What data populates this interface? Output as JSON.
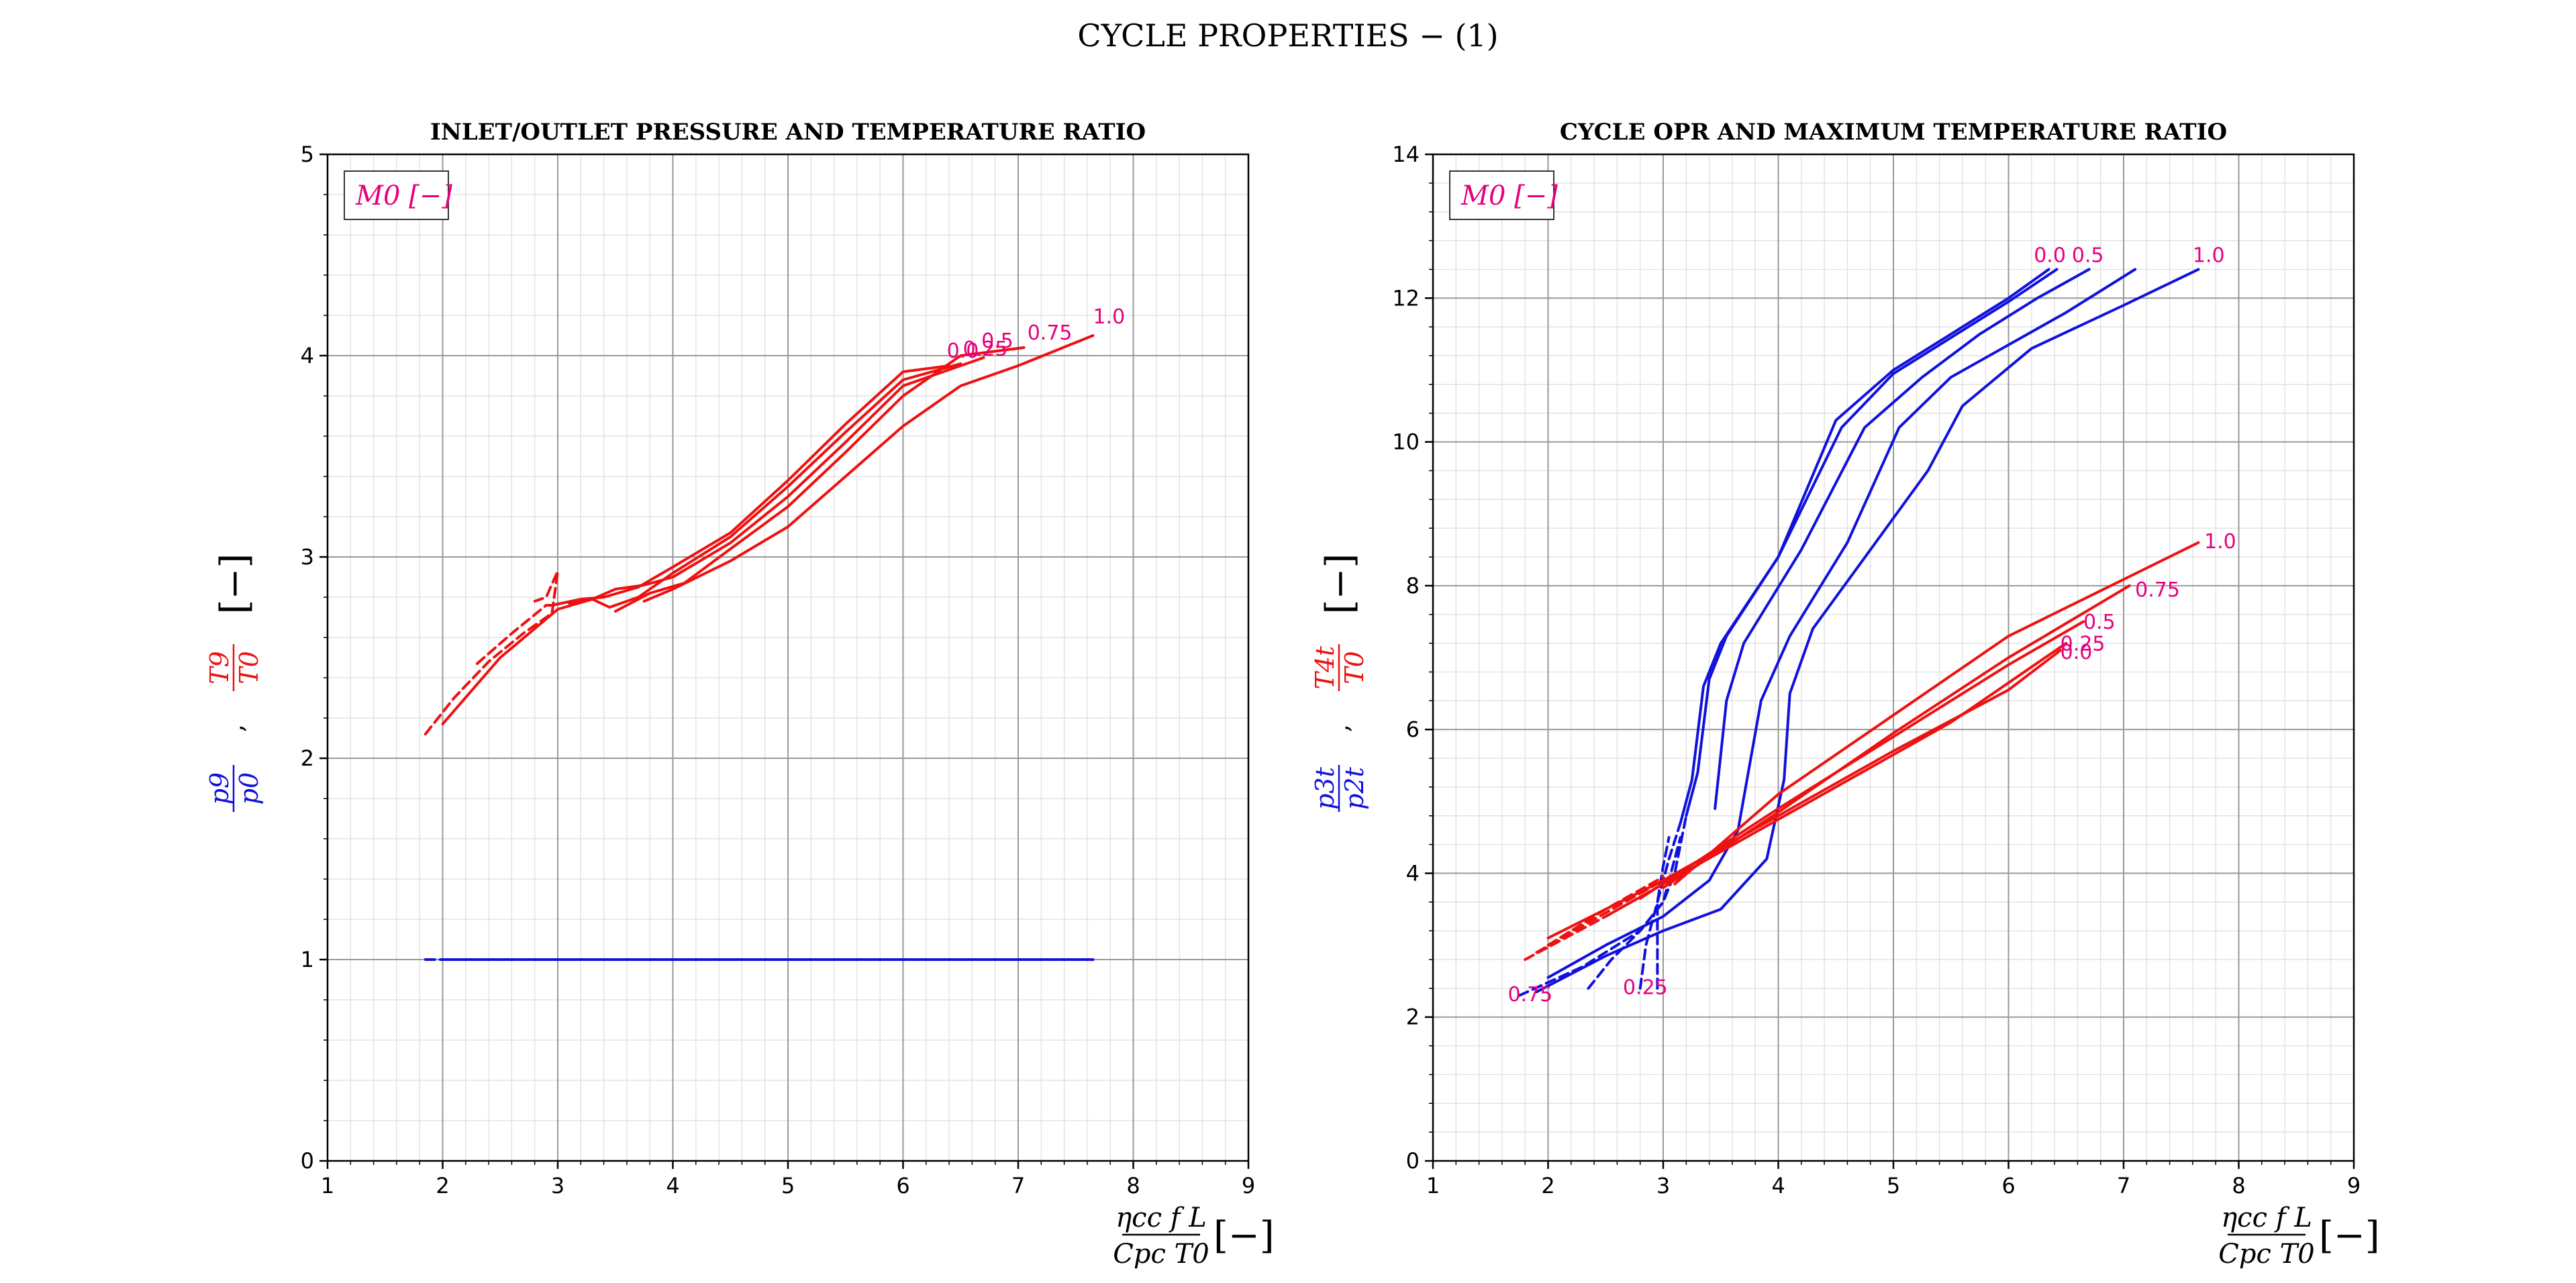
{
  "figure": {
    "title": "CYCLE PROPERTIES − (1)"
  },
  "colors": {
    "red": "#ee1111",
    "blue": "#1111dd",
    "magenta": "#e6007e",
    "grid_major": "#999999",
    "grid_minor": "#dddddd"
  },
  "chart_data": [
    {
      "type": "line",
      "title": "INLET/OUTLET PRESSURE AND TEMPERATURE RATIO",
      "xlabel_num": "ηcc f L",
      "xlabel_den": "Cpc T0",
      "xlabel_unit": "[−]",
      "ylabel_blue_num": "p9",
      "ylabel_blue_den": "p0",
      "ylabel_sep": ",",
      "ylabel_red_num": "T9",
      "ylabel_red_den": "T0",
      "ylabel_unit": "[−]",
      "legend_title": "M0 [−]",
      "legend_placement": "top-left",
      "xlim": [
        1,
        9
      ],
      "ylim": [
        0,
        5
      ],
      "xticks": [
        "1",
        "2",
        "3",
        "4",
        "5",
        "6",
        "7",
        "8",
        "9"
      ],
      "yticks": [
        "0",
        "1",
        "2",
        "3",
        "4",
        "5"
      ],
      "grid": true,
      "minor_grid": true,
      "series": [
        {
          "color": "red",
          "dash": true,
          "points": [
            [
              1.85,
              2.12
            ],
            [
              2.1,
              2.3
            ],
            [
              2.4,
              2.48
            ],
            [
              2.7,
              2.62
            ],
            [
              2.95,
              2.72
            ],
            [
              3.0,
              2.93
            ],
            [
              2.9,
              2.8
            ],
            [
              2.8,
              2.78
            ]
          ]
        },
        {
          "color": "red",
          "dash": false,
          "points": [
            [
              2.95,
              2.76
            ],
            [
              3.2,
              2.79
            ],
            [
              3.4,
              2.8
            ],
            [
              3.7,
              2.85
            ],
            [
              4.0,
              2.95
            ],
            [
              4.5,
              3.12
            ],
            [
              5.0,
              3.38
            ],
            [
              5.5,
              3.66
            ],
            [
              6.0,
              3.92
            ],
            [
              6.4,
              3.95
            ]
          ]
        },
        {
          "color": "red",
          "dash": true,
          "points": [
            [
              2.3,
              2.47
            ],
            [
              2.6,
              2.62
            ],
            [
              2.9,
              2.76
            ],
            [
              3.0,
              2.76
            ]
          ]
        },
        {
          "color": "red",
          "dash": false,
          "points": [
            [
              3.1,
              2.77
            ],
            [
              3.3,
              2.79
            ],
            [
              3.45,
              2.75
            ],
            [
              3.7,
              2.8
            ],
            [
              4.0,
              2.92
            ],
            [
              4.5,
              3.1
            ],
            [
              5.0,
              3.35
            ],
            [
              5.5,
              3.62
            ],
            [
              6.0,
              3.88
            ],
            [
              6.5,
              3.96
            ]
          ]
        },
        {
          "color": "red",
          "dash": false,
          "points": [
            [
              2.0,
              2.17
            ],
            [
              2.5,
              2.5
            ],
            [
              3.0,
              2.74
            ],
            [
              3.3,
              2.79
            ],
            [
              3.5,
              2.84
            ],
            [
              3.75,
              2.86
            ],
            [
              4.0,
              2.9
            ],
            [
              4.5,
              3.07
            ],
            [
              5.0,
              3.3
            ],
            [
              5.5,
              3.57
            ],
            [
              6.0,
              3.85
            ],
            [
              6.7,
              3.99
            ]
          ]
        },
        {
          "color": "red",
          "dash": false,
          "points": [
            [
              3.5,
              2.73
            ],
            [
              3.8,
              2.82
            ],
            [
              4.1,
              2.87
            ],
            [
              4.5,
              3.04
            ],
            [
              5.0,
              3.25
            ],
            [
              5.5,
              3.52
            ],
            [
              6.0,
              3.8
            ],
            [
              6.5,
              4.0
            ],
            [
              7.05,
              4.04
            ]
          ]
        },
        {
          "color": "red",
          "dash": false,
          "points": [
            [
              3.75,
              2.78
            ],
            [
              4.0,
              2.84
            ],
            [
              4.5,
              2.98
            ],
            [
              5.0,
              3.15
            ],
            [
              5.5,
              3.4
            ],
            [
              6.0,
              3.65
            ],
            [
              6.5,
              3.85
            ],
            [
              7.0,
              3.95
            ],
            [
              7.65,
              4.1
            ]
          ]
        },
        {
          "color": "blue",
          "dash": true,
          "points": [
            [
              1.85,
              1.0
            ],
            [
              2.0,
              1.0
            ]
          ]
        },
        {
          "color": "blue",
          "dash": false,
          "points": [
            [
              2.0,
              1.0
            ],
            [
              7.65,
              1.0
            ]
          ]
        }
      ],
      "annotations": [
        {
          "text": "0.0",
          "x": 6.38,
          "y": 3.99
        },
        {
          "text": "0.25",
          "x": 6.52,
          "y": 4.0
        },
        {
          "text": "0.5",
          "x": 6.68,
          "y": 4.04
        },
        {
          "text": "0.75",
          "x": 7.08,
          "y": 4.08
        },
        {
          "text": "1.0",
          "x": 7.65,
          "y": 4.16
        }
      ]
    },
    {
      "type": "line",
      "title": "CYCLE OPR AND MAXIMUM TEMPERATURE RATIO",
      "xlabel_num": "ηcc f L",
      "xlabel_den": "Cpc T0",
      "xlabel_unit": "[−]",
      "ylabel_blue_num": "p3t",
      "ylabel_blue_den": "p2t",
      "ylabel_sep": ",",
      "ylabel_red_num": "T4t",
      "ylabel_red_den": "T0",
      "ylabel_unit": "[−]",
      "legend_title": "M0 [−]",
      "legend_placement": "top-left",
      "xlim": [
        1,
        9
      ],
      "ylim": [
        0,
        14
      ],
      "xticks": [
        "1",
        "2",
        "3",
        "4",
        "5",
        "6",
        "7",
        "8",
        "9"
      ],
      "yticks": [
        "0",
        "2",
        "4",
        "6",
        "8",
        "10",
        "12",
        "14"
      ],
      "grid": true,
      "minor_grid": true,
      "series": [
        {
          "color": "blue",
          "dash": false,
          "points": [
            [
              3.15,
              4.7
            ],
            [
              3.25,
              5.3
            ],
            [
              3.35,
              6.6
            ],
            [
              3.5,
              7.2
            ],
            [
              4.0,
              8.4
            ],
            [
              4.5,
              10.3
            ],
            [
              5.0,
              11.0
            ],
            [
              5.5,
              11.5
            ],
            [
              6.0,
              12.0
            ],
            [
              6.35,
              12.4
            ]
          ]
        },
        {
          "color": "blue",
          "dash": false,
          "points": [
            [
              3.2,
              4.8
            ],
            [
              3.3,
              5.4
            ],
            [
              3.4,
              6.7
            ],
            [
              3.55,
              7.3
            ],
            [
              4.0,
              8.4
            ],
            [
              4.55,
              10.2
            ],
            [
              5.0,
              10.95
            ],
            [
              5.5,
              11.45
            ],
            [
              6.0,
              11.95
            ],
            [
              6.42,
              12.4
            ]
          ]
        },
        {
          "color": "blue",
          "dash": false,
          "points": [
            [
              3.45,
              4.9
            ],
            [
              3.55,
              6.4
            ],
            [
              3.7,
              7.2
            ],
            [
              4.2,
              8.5
            ],
            [
              4.75,
              10.2
            ],
            [
              5.25,
              10.9
            ],
            [
              5.75,
              11.5
            ],
            [
              6.25,
              12.0
            ],
            [
              6.7,
              12.4
            ]
          ]
        },
        {
          "color": "blue",
          "dash": false,
          "points": [
            [
              2.0,
              2.55
            ],
            [
              2.5,
              3.0
            ],
            [
              3.0,
              3.4
            ],
            [
              3.4,
              3.9
            ],
            [
              3.65,
              4.6
            ],
            [
              3.85,
              6.4
            ],
            [
              4.1,
              7.3
            ],
            [
              4.6,
              8.6
            ],
            [
              5.05,
              10.2
            ],
            [
              5.5,
              10.9
            ],
            [
              6.5,
              11.8
            ],
            [
              7.1,
              12.4
            ]
          ]
        },
        {
          "color": "blue",
          "dash": false,
          "points": [
            [
              1.9,
              2.35
            ],
            [
              2.5,
              2.85
            ],
            [
              3.0,
              3.2
            ],
            [
              3.5,
              3.5
            ],
            [
              3.9,
              4.2
            ],
            [
              4.05,
              5.3
            ],
            [
              4.1,
              6.5
            ],
            [
              4.3,
              7.4
            ],
            [
              4.8,
              8.5
            ],
            [
              5.3,
              9.6
            ],
            [
              5.6,
              10.5
            ],
            [
              6.2,
              11.3
            ],
            [
              7.0,
              11.9
            ],
            [
              7.65,
              12.4
            ]
          ]
        },
        {
          "color": "blue",
          "dash": true,
          "points": [
            [
              2.35,
              2.4
            ],
            [
              2.55,
              2.8
            ],
            [
              2.8,
              3.2
            ],
            [
              3.0,
              3.6
            ],
            [
              3.1,
              4.0
            ],
            [
              3.2,
              4.8
            ]
          ]
        },
        {
          "color": "blue",
          "dash": true,
          "points": [
            [
              2.95,
              2.4
            ],
            [
              2.95,
              3.0
            ],
            [
              2.95,
              3.6
            ],
            [
              3.0,
              4.1
            ],
            [
              3.05,
              4.5
            ]
          ]
        },
        {
          "color": "blue",
          "dash": true,
          "points": [
            [
              2.8,
              2.4
            ],
            [
              2.85,
              3.0
            ],
            [
              2.95,
              3.6
            ],
            [
              3.05,
              4.2
            ],
            [
              3.15,
              4.7
            ]
          ]
        },
        {
          "color": "blue",
          "dash": true,
          "points": [
            [
              1.75,
              2.3
            ],
            [
              2.3,
              2.7
            ],
            [
              2.8,
              3.2
            ],
            [
              3.0,
              3.6
            ],
            [
              3.15,
              4.5
            ]
          ]
        },
        {
          "color": "red",
          "dash": true,
          "points": [
            [
              1.8,
              2.8
            ],
            [
              2.5,
              3.4
            ],
            [
              3.0,
              3.85
            ]
          ]
        },
        {
          "color": "red",
          "dash": true,
          "points": [
            [
              1.9,
              2.9
            ],
            [
              2.5,
              3.45
            ],
            [
              3.0,
              3.9
            ]
          ]
        },
        {
          "color": "red",
          "dash": true,
          "points": [
            [
              2.0,
              3.0
            ],
            [
              2.5,
              3.5
            ],
            [
              3.0,
              3.95
            ]
          ]
        },
        {
          "color": "red",
          "dash": false,
          "points": [
            [
              2.0,
              3.1
            ],
            [
              3.0,
              3.9
            ],
            [
              4.0,
              4.8
            ],
            [
              5.0,
              5.7
            ],
            [
              6.0,
              6.55
            ],
            [
              6.45,
              7.1
            ]
          ]
        },
        {
          "color": "red",
          "dash": false,
          "points": [
            [
              2.5,
              3.4
            ],
            [
              3.5,
              4.3
            ],
            [
              4.5,
              5.2
            ],
            [
              5.5,
              6.1
            ],
            [
              6.5,
              7.2
            ]
          ]
        },
        {
          "color": "red",
          "dash": false,
          "points": [
            [
              2.8,
              3.65
            ],
            [
              4.0,
              4.9
            ],
            [
              5.0,
              5.9
            ],
            [
              6.0,
              6.9
            ],
            [
              6.65,
              7.5
            ]
          ]
        },
        {
          "color": "red",
          "dash": false,
          "points": [
            [
              3.0,
              3.8
            ],
            [
              4.0,
              4.85
            ],
            [
              5.0,
              5.95
            ],
            [
              6.0,
              7.0
            ],
            [
              7.05,
              8.0
            ]
          ]
        },
        {
          "color": "red",
          "dash": false,
          "points": [
            [
              3.1,
              3.85
            ],
            [
              4.0,
              5.1
            ],
            [
              5.0,
              6.2
            ],
            [
              6.0,
              7.3
            ],
            [
              7.65,
              8.6
            ]
          ]
        }
      ],
      "annotations": [
        {
          "text": "0.0",
          "x": 6.22,
          "y": 12.5
        },
        {
          "text": "0.5",
          "x": 6.55,
          "y": 12.5
        },
        {
          "text": "1.0",
          "x": 7.6,
          "y": 12.5
        },
        {
          "text": "1.0",
          "x": 7.7,
          "y": 8.52
        },
        {
          "text": "0.75",
          "x": 7.1,
          "y": 7.85
        },
        {
          "text": "0.5",
          "x": 6.65,
          "y": 7.4
        },
        {
          "text": "0.25",
          "x": 6.45,
          "y": 7.1
        },
        {
          "text": "0.0",
          "x": 6.45,
          "y": 6.98
        },
        {
          "text": "0.75",
          "x": 1.65,
          "y": 2.22
        },
        {
          "text": "0.25",
          "x": 2.65,
          "y": 2.32
        }
      ]
    }
  ]
}
